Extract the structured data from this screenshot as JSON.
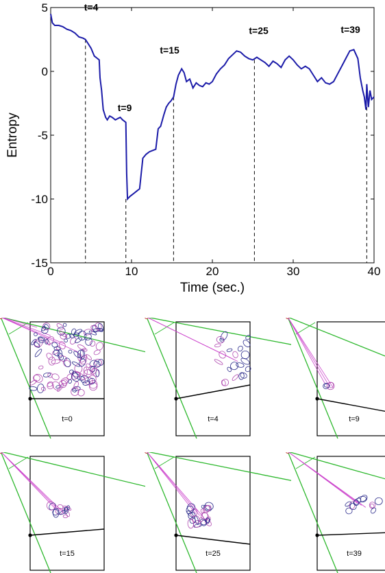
{
  "chart_data": {
    "type": "line",
    "xlabel": "Time (sec.)",
    "ylabel": "Entropy",
    "xlim": [
      0,
      40
    ],
    "ylim": [
      -15,
      5
    ],
    "xticks": [
      "0",
      "10",
      "20",
      "30",
      "40"
    ],
    "yticks": [
      "5",
      "0",
      "-5",
      "-10",
      "-15"
    ],
    "grid": false,
    "line_color": "#1a1aa8",
    "series": [
      {
        "values_x": [
          0,
          0.2,
          0.5,
          1,
          1.5,
          2,
          2.5,
          3,
          3.5,
          4,
          4.3,
          4.6,
          5,
          5.4,
          5.8,
          6.0,
          6.1,
          6.3,
          6.5,
          6.8,
          7.0,
          7.3,
          7.6,
          8.0,
          8.3,
          8.6,
          8.9,
          9.1,
          9.3,
          9.4,
          9.5,
          9.8,
          10.2,
          10.6,
          11.0,
          11.4,
          11.8,
          12.2,
          12.6,
          13.0,
          13.3,
          13.6,
          14.0,
          14.3,
          14.6,
          14.9,
          15.2,
          15.5,
          15.8,
          16.2,
          16.5,
          16.8,
          17.2,
          17.6,
          18.0,
          18.4,
          18.8,
          19.2,
          19.6,
          20.0,
          20.5,
          21.0,
          21.5,
          22.0,
          22.5,
          23.0,
          23.5,
          24.0,
          24.5,
          25.0,
          25.5,
          26.0,
          26.5,
          27.0,
          27.5,
          28.0,
          28.5,
          29.0,
          29.5,
          30.0,
          30.5,
          31.0,
          31.5,
          32.0,
          32.5,
          33.0,
          33.5,
          34.0,
          34.5,
          35.0,
          35.5,
          36.0,
          36.5,
          37.0,
          37.5,
          38.0,
          38.3,
          38.6,
          38.8,
          39.0,
          39.1,
          39.3,
          39.5,
          39.7,
          40.0
        ],
        "values_y": [
          4.5,
          3.8,
          3.6,
          3.6,
          3.5,
          3.3,
          3.2,
          3.0,
          2.7,
          2.6,
          2.5,
          2.2,
          1.8,
          1.2,
          1.0,
          0.9,
          -0.5,
          -1.5,
          -3.0,
          -3.6,
          -3.8,
          -3.5,
          -3.6,
          -3.8,
          -3.7,
          -3.6,
          -3.8,
          -3.9,
          -4.0,
          -8.0,
          -10.0,
          -9.8,
          -9.6,
          -9.4,
          -9.2,
          -6.8,
          -6.5,
          -6.3,
          -6.2,
          -6.1,
          -4.5,
          -4.3,
          -3.4,
          -2.8,
          -2.5,
          -2.3,
          -2.0,
          -1.0,
          -0.3,
          0.2,
          -0.1,
          -0.8,
          -0.6,
          -1.3,
          -0.9,
          -1.1,
          -1.2,
          -0.9,
          -1.0,
          -0.8,
          -0.2,
          0.2,
          0.5,
          1.0,
          1.3,
          1.6,
          1.5,
          1.2,
          1.0,
          0.9,
          1.1,
          0.9,
          0.7,
          0.4,
          0.8,
          0.6,
          0.3,
          0.9,
          1.2,
          0.9,
          0.5,
          0.2,
          0.4,
          0.2,
          -0.3,
          -0.8,
          -0.5,
          -0.9,
          -1.0,
          -0.8,
          -0.2,
          0.4,
          1.0,
          1.6,
          1.7,
          1.0,
          -0.5,
          -1.5,
          -2.0,
          -3.0,
          -1.0,
          -2.8,
          -1.5,
          -2.2,
          -2.0
        ]
      }
    ],
    "annotations": [
      {
        "label": "t=0",
        "x": 0,
        "y": 4.5,
        "marker": false
      },
      {
        "label": "t=4",
        "x": 4.3,
        "y": 2.5,
        "marker": true
      },
      {
        "label": "t=9",
        "x": 9.3,
        "y": -10.0,
        "marker": true
      },
      {
        "label": "t=15",
        "x": 15.2,
        "y": -2.0,
        "marker": true
      },
      {
        "label": "t=25",
        "x": 25.2,
        "y": 0.9,
        "marker": true
      },
      {
        "label": "t=39",
        "x": 39.1,
        "y": -2.8,
        "marker": true
      }
    ]
  },
  "panels": [
    {
      "label": "t=0"
    },
    {
      "label": "t=4"
    },
    {
      "label": "t=9"
    },
    {
      "label": "t=15"
    },
    {
      "label": "t=25"
    },
    {
      "label": "t=39"
    }
  ]
}
